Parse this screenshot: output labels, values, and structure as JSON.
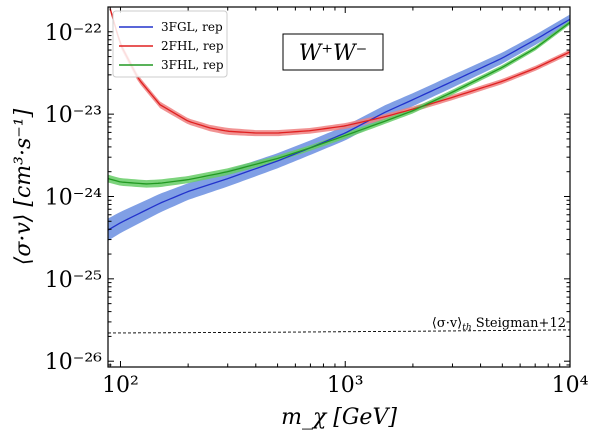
{
  "chart_data": {
    "type": "line",
    "xlabel": "m_χ [GeV]",
    "ylabel": "⟨σ·v⟩ [cm³·s⁻¹]",
    "xscale": "log",
    "yscale": "log",
    "xlim": [
      88,
      10000
    ],
    "ylim": [
      8.5e-27,
      2e-22
    ],
    "xticks": [
      {
        "value": 100,
        "label": "10²"
      },
      {
        "value": 1000,
        "label": "10³"
      },
      {
        "value": 10000,
        "label": "10⁴"
      }
    ],
    "yticks": [
      {
        "value": 1e-26,
        "label": "10⁻²⁶"
      },
      {
        "value": 1e-25,
        "label": "10⁻²⁵"
      },
      {
        "value": 1e-24,
        "label": "10⁻²⁴"
      },
      {
        "value": 1e-23,
        "label": "10⁻²³"
      },
      {
        "value": 1e-22,
        "label": "10⁻²²"
      }
    ],
    "grid": false,
    "legend_placement": "top-left",
    "annotation_box": "W⁺W⁻",
    "series": [
      {
        "name": "3FGL, rep",
        "color": "#2233cc",
        "band_color": "#6a8ee0",
        "x": [
          88,
          100,
          150,
          200,
          300,
          500,
          700,
          1000,
          1500,
          2000,
          3000,
          5000,
          7000,
          10000
        ],
        "y": [
          3.9e-25,
          4.8e-25,
          8.3e-25,
          1.15e-24,
          1.65e-24,
          2.7e-24,
          3.9e-24,
          5.9e-24,
          1.05e-23,
          1.5e-23,
          2.5e-23,
          4.8e-23,
          8e-23,
          1.42e-22
        ],
        "band_lower": [
          2.9e-25,
          3.6e-25,
          6.4e-25,
          9.1e-25,
          1.32e-24,
          2.2e-24,
          3.2e-24,
          4.8e-24,
          8.6e-24,
          1.25e-23,
          2.1e-23,
          4.1e-23,
          6.9e-23,
          1.24e-22
        ],
        "band_upper": [
          5.4e-25,
          6.5e-25,
          1.08e-24,
          1.45e-24,
          2.1e-24,
          3.35e-24,
          4.8e-24,
          7.2e-24,
          1.28e-23,
          1.8e-23,
          2.98e-23,
          5.6e-23,
          9.2e-23,
          1.62e-22
        ]
      },
      {
        "name": "2FHL, rep",
        "color": "#e02020",
        "band_color": "#ee8080",
        "x": [
          90,
          100,
          120,
          150,
          200,
          250,
          300,
          400,
          500,
          700,
          1000,
          1500,
          2000,
          3000,
          5000,
          7000,
          10000
        ],
        "y": [
          1.9e-22,
          7e-23,
          2.7e-23,
          1.3e-23,
          8.2e-24,
          6.8e-24,
          6.2e-24,
          5.9e-24,
          5.9e-24,
          6.3e-24,
          7.2e-24,
          9.3e-24,
          1.15e-23,
          1.6e-23,
          2.5e-23,
          3.6e-23,
          5.7e-23
        ],
        "band_lower": [
          1.75e-22,
          6.4e-23,
          2.45e-23,
          1.18e-23,
          7.5e-24,
          6.2e-24,
          5.6e-24,
          5.4e-24,
          5.4e-24,
          5.8e-24,
          6.6e-24,
          8.5e-24,
          1.06e-23,
          1.48e-23,
          2.32e-23,
          3.35e-23,
          5.3e-23
        ],
        "band_upper": [
          2.05e-22,
          7.6e-23,
          2.95e-23,
          1.42e-23,
          8.9e-24,
          7.4e-24,
          6.8e-24,
          6.4e-24,
          6.4e-24,
          6.8e-24,
          7.8e-24,
          1e-23,
          1.24e-23,
          1.72e-23,
          2.68e-23,
          3.85e-23,
          6.1e-23
        ]
      },
      {
        "name": "3FHL, rep",
        "color": "#229922",
        "band_color": "#66cc66",
        "x": [
          88,
          100,
          130,
          150,
          200,
          300,
          500,
          700,
          1000,
          1500,
          2000,
          3000,
          5000,
          7000,
          10000
        ],
        "y": [
          1.65e-24,
          1.5e-24,
          1.42e-24,
          1.45e-24,
          1.6e-24,
          2e-24,
          2.9e-24,
          3.9e-24,
          5.5e-24,
          8.2e-24,
          1.1e-23,
          1.85e-23,
          3.7e-23,
          6.3e-23,
          1.3e-22
        ],
        "band_lower": [
          1.48e-24,
          1.35e-24,
          1.28e-24,
          1.3e-24,
          1.45e-24,
          1.82e-24,
          2.65e-24,
          3.6e-24,
          5.05e-24,
          7.6e-24,
          1.02e-23,
          1.72e-23,
          3.45e-23,
          5.9e-23,
          1.22e-22
        ],
        "band_upper": [
          1.84e-24,
          1.67e-24,
          1.58e-24,
          1.61e-24,
          1.77e-24,
          2.2e-24,
          3.15e-24,
          4.2e-24,
          5.95e-24,
          8.8e-24,
          1.18e-23,
          1.98e-23,
          3.95e-23,
          6.7e-23,
          1.38e-22
        ]
      },
      {
        "name": "⟨σ·v⟩_th Steigman+12",
        "color": "#000000",
        "style": "dashed",
        "x": [
          88,
          200,
          500,
          1000,
          2000,
          5000,
          10000
        ],
        "y": [
          2.2e-26,
          2.22e-26,
          2.25e-26,
          2.28e-26,
          2.31e-26,
          2.36e-26,
          2.4e-26
        ]
      }
    ],
    "annotations": [
      {
        "text": "⟨σ·v⟩",
        "subscript": "th",
        "suffix": " Steigman+12"
      }
    ]
  }
}
